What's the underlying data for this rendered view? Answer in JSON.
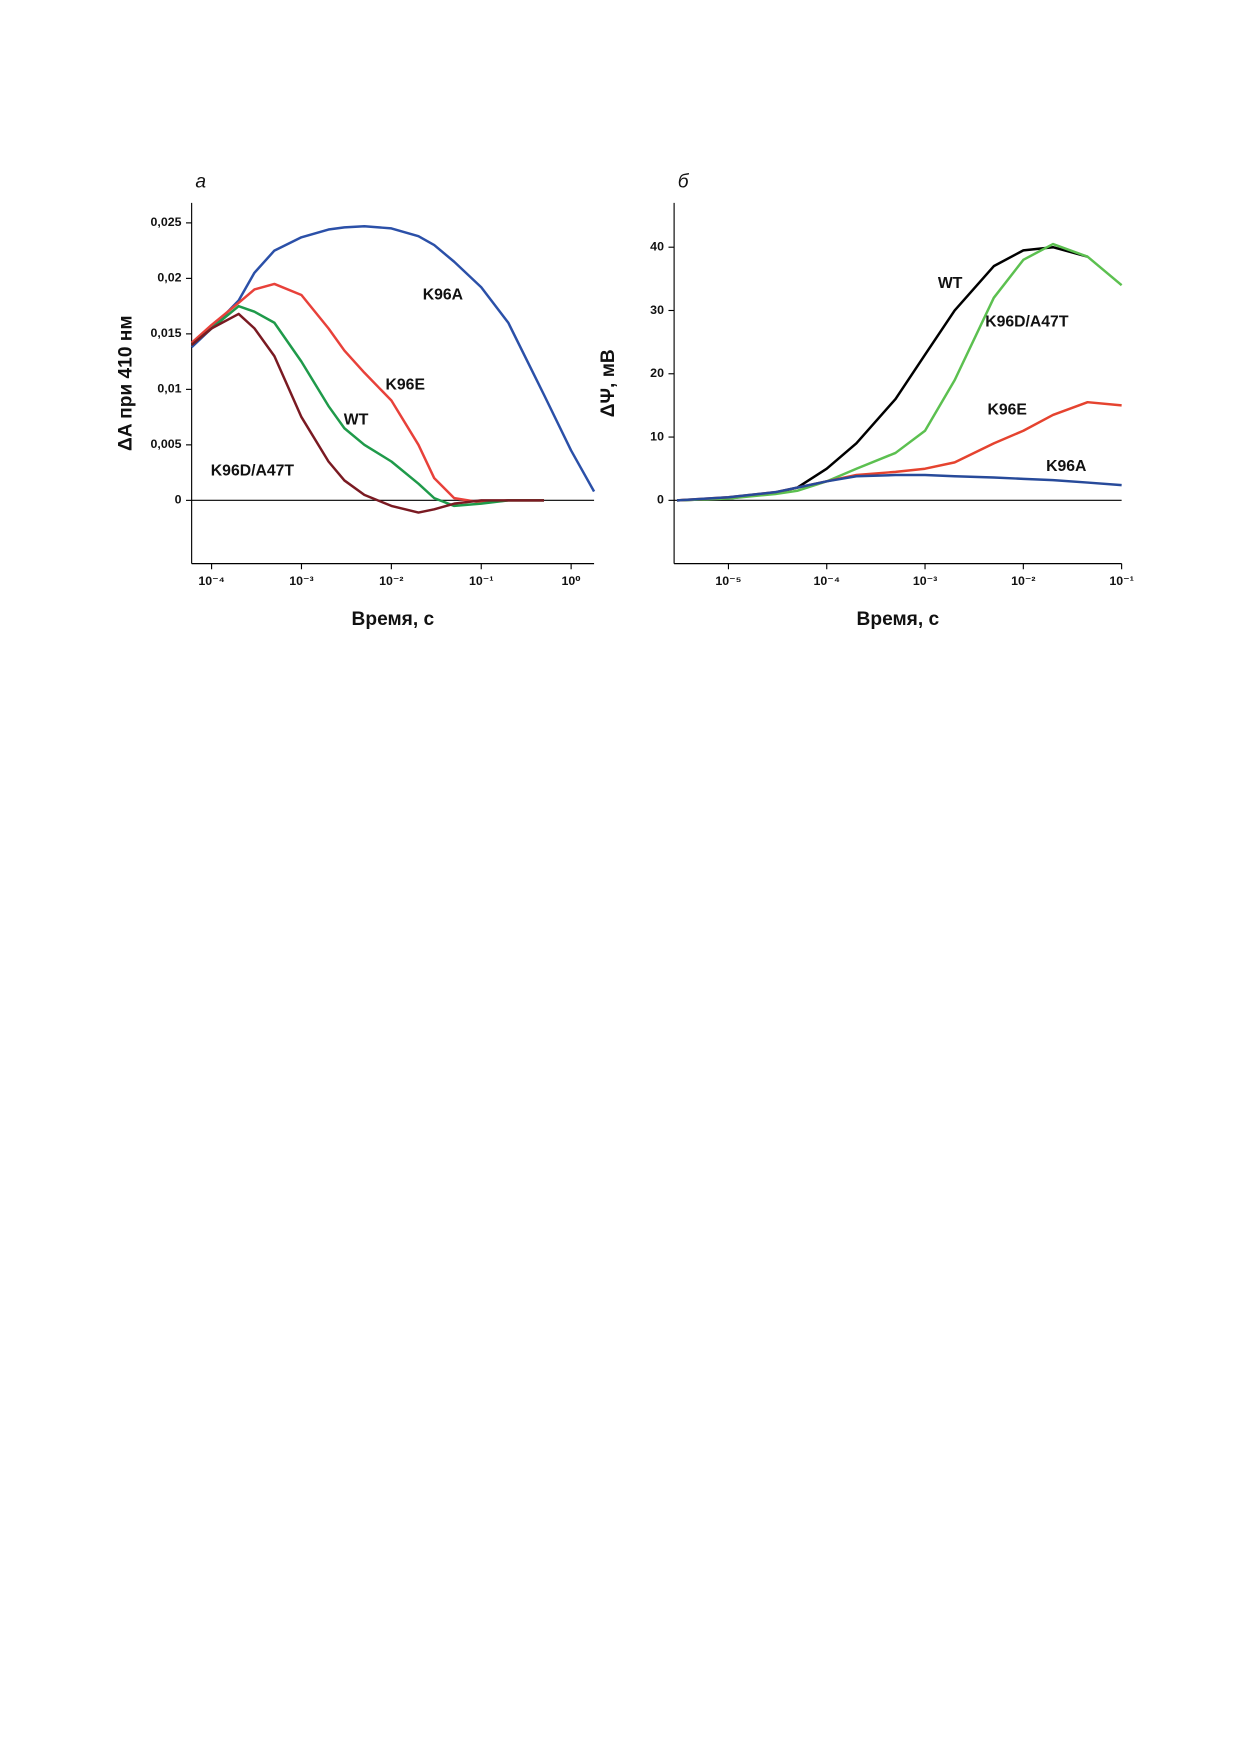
{
  "chart_data": [
    {
      "type": "line",
      "panel": "а",
      "xlabel": "Время, с",
      "ylabel": "ΔA при 410 нм",
      "xscale": "log",
      "xlim": [
        6e-05,
        1.8
      ],
      "ylim": [
        -0.0057,
        0.0268
      ],
      "xticks": [
        {
          "value": 0.0001,
          "label": "10⁻⁴"
        },
        {
          "value": 0.001,
          "label": "10⁻³"
        },
        {
          "value": 0.01,
          "label": "10⁻²"
        },
        {
          "value": 0.1,
          "label": "10⁻¹"
        },
        {
          "value": 1,
          "label": "10⁰"
        }
      ],
      "yticks": [
        {
          "value": 0.025,
          "label": "0,025"
        },
        {
          "value": 0.02,
          "label": "0,02"
        },
        {
          "value": 0.015,
          "label": "0,015"
        },
        {
          "value": 0.01,
          "label": "0,01"
        },
        {
          "value": 0.005,
          "label": "0,005"
        },
        0
      ],
      "x": [
        6e-05,
        0.0001,
        0.0002,
        0.0003,
        0.0005,
        0.001,
        0.002,
        0.003,
        0.005,
        0.01,
        0.02,
        0.03,
        0.05,
        0.1,
        0.2,
        0.5,
        1,
        1.8
      ],
      "series": [
        {
          "name": "K96A",
          "color": "#2b50a8",
          "values": [
            0.0138,
            0.0155,
            0.018,
            0.0205,
            0.0225,
            0.0237,
            0.0244,
            0.0246,
            0.0247,
            0.0245,
            0.0238,
            0.023,
            0.0215,
            0.0192,
            0.016,
            0.0095,
            0.0045,
            0.0008
          ]
        },
        {
          "name": "K96E",
          "color": "#e8413a",
          "values": [
            0.0142,
            0.0158,
            0.0178,
            0.019,
            0.0195,
            0.0185,
            0.0155,
            0.0135,
            0.0115,
            0.009,
            0.005,
            0.002,
            0.0002,
            -0.0002,
            0,
            0,
            null,
            null
          ]
        },
        {
          "name": "WT",
          "color": "#1f9a4a",
          "values": [
            0.014,
            0.0155,
            0.0175,
            0.017,
            0.016,
            0.0125,
            0.0085,
            0.0065,
            0.005,
            0.0035,
            0.0015,
            0.0002,
            -0.0005,
            -0.0003,
            0,
            0,
            null,
            null
          ]
        },
        {
          "name": "K96D/A47T",
          "color": "#7a1a22",
          "values": [
            0.014,
            0.0155,
            0.0168,
            0.0155,
            0.013,
            0.0075,
            0.0035,
            0.0018,
            0.0005,
            -0.0005,
            -0.0011,
            -0.0008,
            -0.0003,
            0,
            0,
            0,
            null,
            null
          ]
        }
      ]
    },
    {
      "type": "line",
      "panel": "б",
      "xlabel": "Время, с",
      "ylabel": "ΔΨ, мВ",
      "xscale": "log",
      "xlim": [
        2.8e-06,
        0.1
      ],
      "ylim": [
        -10,
        47
      ],
      "xticks": [
        {
          "value": 1e-05,
          "label": "10⁻⁵"
        },
        {
          "value": 0.0001,
          "label": "10⁻⁴"
        },
        {
          "value": 0.001,
          "label": "10⁻³"
        },
        {
          "value": 0.01,
          "label": "10⁻²"
        },
        {
          "value": 0.1,
          "label": "10⁻¹"
        }
      ],
      "yticks": [
        0,
        10,
        20,
        30,
        40
      ],
      "x": [
        3e-06,
        1e-05,
        3e-05,
        5e-05,
        0.0001,
        0.0002,
        0.0005,
        0.001,
        0.002,
        0.005,
        0.01,
        0.02,
        0.045,
        0.1
      ],
      "series": [
        {
          "name": "WT",
          "color": "#000000",
          "values": [
            0,
            0.3,
            1.2,
            2,
            5,
            9,
            16,
            23,
            30,
            37,
            39.5,
            40,
            38.5,
            null
          ]
        },
        {
          "name": "K96D/A47T",
          "color": "#5cc050",
          "values": [
            0,
            0.3,
            1,
            1.5,
            3,
            5,
            7.5,
            11,
            19,
            32,
            38,
            40.5,
            38.5,
            34
          ]
        },
        {
          "name": "K96E",
          "color": "#e5432f",
          "values": [
            0,
            0.5,
            1.3,
            2,
            3,
            4,
            4.5,
            5,
            6,
            9,
            11,
            13.5,
            15.5,
            15
          ]
        },
        {
          "name": "K96A",
          "color": "#274a9a",
          "values": [
            0,
            0.5,
            1.3,
            2,
            3,
            3.8,
            4,
            4,
            3.8,
            3.6,
            3.4,
            3.2,
            2.8,
            2.4
          ]
        }
      ]
    }
  ]
}
